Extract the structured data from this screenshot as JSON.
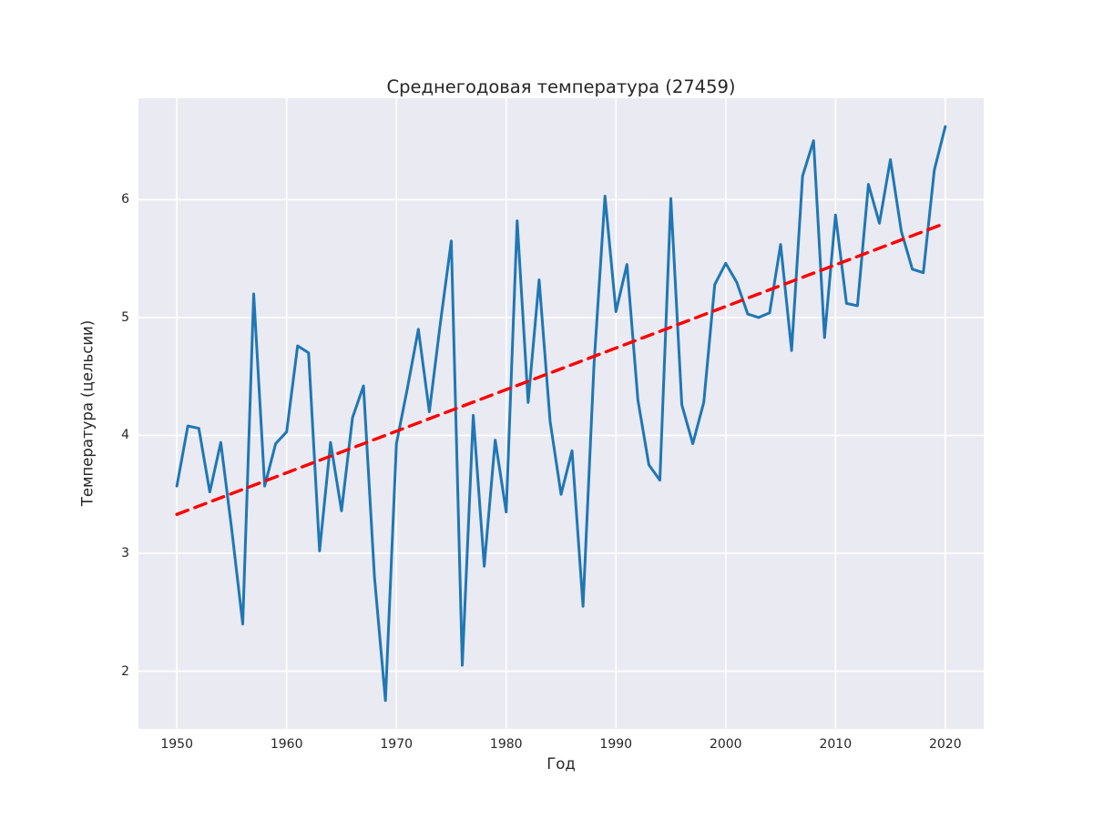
{
  "chart_data": {
    "type": "line",
    "title": "Среднегодовая температура (27459)",
    "xlabel": "Год",
    "ylabel": "Температура (цельсии)",
    "xlim": [
      1946.5,
      2023.5
    ],
    "ylim": [
      1.51,
      6.86
    ],
    "x_ticks": [
      1950,
      1960,
      1970,
      1980,
      1990,
      2000,
      2010,
      2020
    ],
    "y_ticks": [
      2,
      3,
      4,
      5,
      6
    ],
    "grid": true,
    "legend": "none",
    "plot_background": "#eaeaf2",
    "grid_color": "#ffffff",
    "text_color": "#262626",
    "series": [
      {
        "name": "annual-temperature",
        "color": "#1f77b4",
        "width": 3,
        "dash": null,
        "x": [
          1950,
          1951,
          1952,
          1953,
          1954,
          1955,
          1956,
          1957,
          1958,
          1959,
          1960,
          1961,
          1962,
          1963,
          1964,
          1965,
          1966,
          1967,
          1968,
          1969,
          1970,
          1971,
          1972,
          1973,
          1974,
          1975,
          1976,
          1977,
          1978,
          1979,
          1980,
          1981,
          1982,
          1983,
          1984,
          1985,
          1986,
          1987,
          1988,
          1989,
          1990,
          1991,
          1992,
          1993,
          1994,
          1995,
          1996,
          1997,
          1998,
          1999,
          2000,
          2001,
          2002,
          2003,
          2004,
          2005,
          2006,
          2007,
          2008,
          2009,
          2010,
          2011,
          2012,
          2013,
          2014,
          2015,
          2016,
          2017,
          2018,
          2019,
          2020
        ],
        "values": [
          3.57,
          4.08,
          4.06,
          3.52,
          3.94,
          3.2,
          2.4,
          5.2,
          3.57,
          3.93,
          4.03,
          4.76,
          4.7,
          3.02,
          3.94,
          3.36,
          4.15,
          4.42,
          2.8,
          1.75,
          3.93,
          4.4,
          4.9,
          4.2,
          4.95,
          5.65,
          2.05,
          4.17,
          2.89,
          3.96,
          3.35,
          5.82,
          4.28,
          5.32,
          4.12,
          3.5,
          3.87,
          2.55,
          4.6,
          6.03,
          5.05,
          5.45,
          4.3,
          3.75,
          3.62,
          6.01,
          4.26,
          3.93,
          4.28,
          5.28,
          5.46,
          5.3,
          5.03,
          5.0,
          5.04,
          5.62,
          4.72,
          6.2,
          6.5,
          4.83,
          5.87,
          5.12,
          5.1,
          6.13,
          5.8,
          6.34,
          5.73,
          5.41,
          5.38,
          6.25,
          6.62
        ]
      },
      {
        "name": "linear-trend",
        "color": "#ff0000",
        "width": 3.4,
        "dash": [
          13,
          8
        ],
        "x": [
          1950,
          2020
        ],
        "values": [
          3.33,
          5.8
        ]
      }
    ]
  }
}
